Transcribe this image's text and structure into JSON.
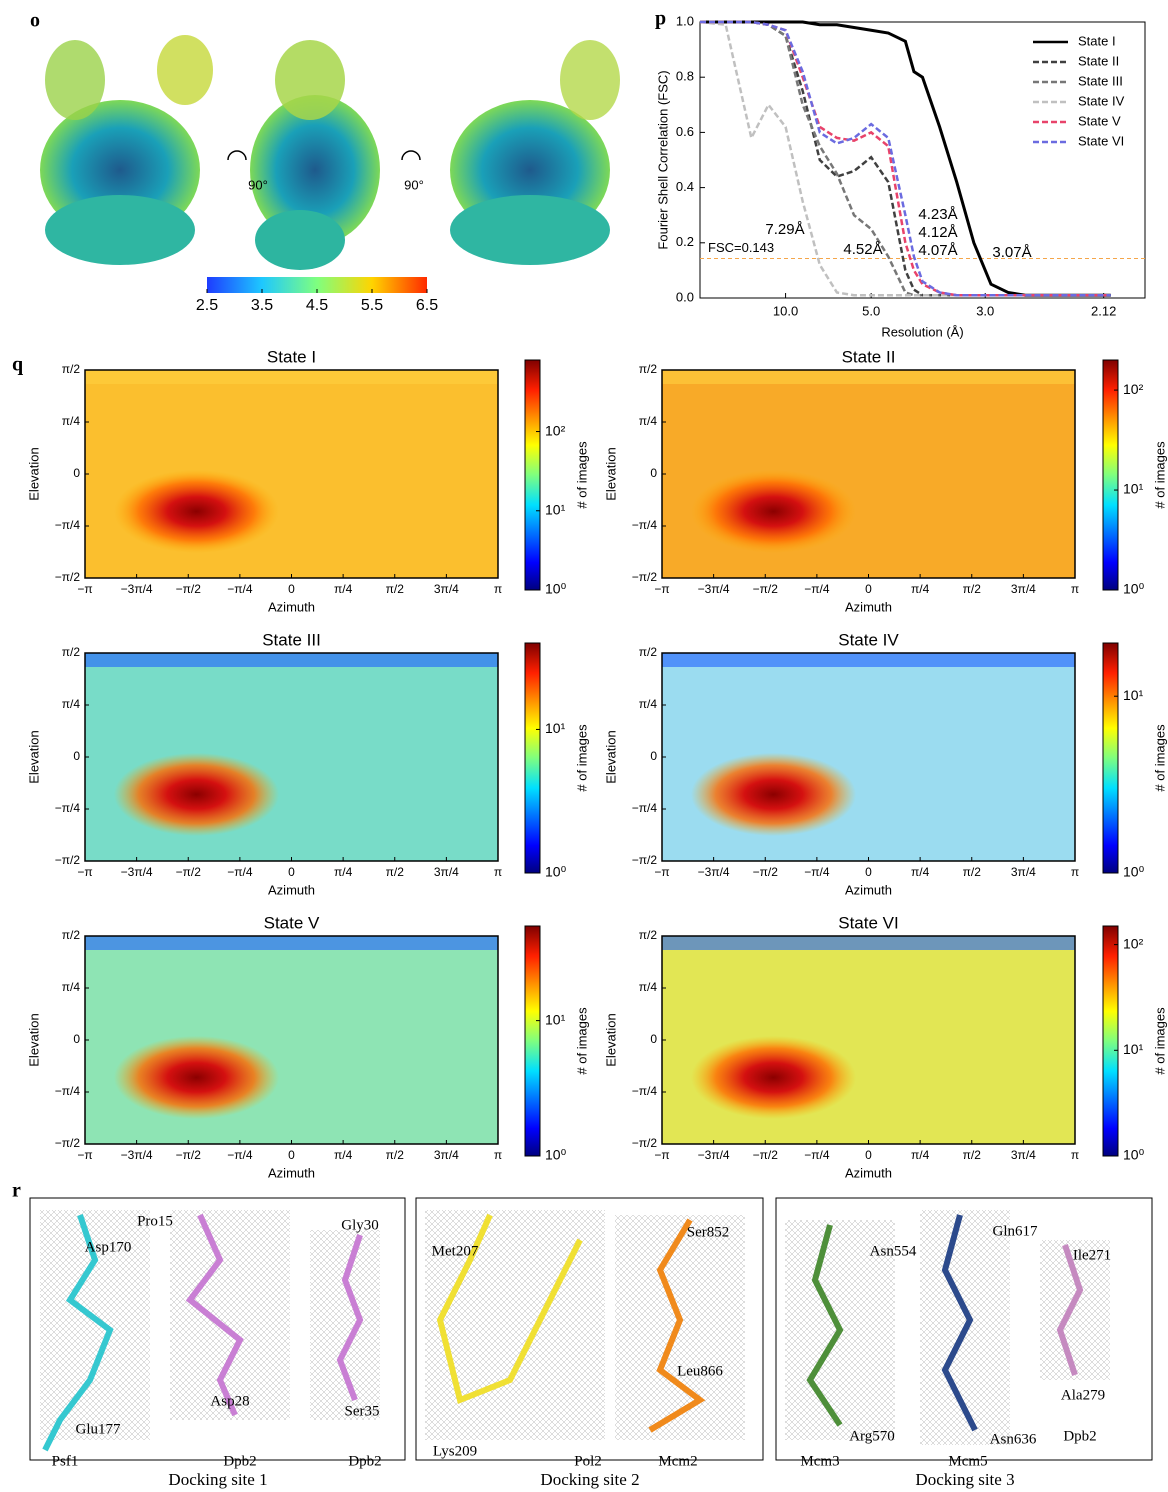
{
  "panel_labels": [
    "o",
    "p",
    "q",
    "r"
  ],
  "map": {
    "colorbar_ticks": [
      2.5,
      3.5,
      4.5,
      5.5,
      6.5
    ],
    "rotation_labels": [
      "90°",
      "90°"
    ]
  },
  "chart_data": [
    {
      "type": "line",
      "xlabel": "Resolution (Å)",
      "ylabel": "Fourier Shell Correlation (FSC)",
      "x": [
        0.0,
        0.03,
        0.06,
        0.08,
        0.1,
        0.12,
        0.14,
        0.16,
        0.18,
        0.2,
        0.22,
        0.24,
        0.25,
        0.26,
        0.28,
        0.3,
        0.32,
        0.34,
        0.36,
        0.38,
        0.42,
        0.46,
        0.48
      ],
      "series": [
        {
          "name": "State I",
          "color": "#000000",
          "dashed": false,
          "values": [
            1,
            1,
            1,
            1,
            1,
            1,
            0.99,
            0.99,
            0.98,
            0.97,
            0.96,
            0.93,
            0.82,
            0.8,
            0.62,
            0.42,
            0.2,
            0.05,
            0.02,
            0.01,
            0.01,
            0.01,
            0.01
          ]
        },
        {
          "name": "State II",
          "color": "#404040",
          "dashed": true,
          "values": [
            1,
            1,
            1,
            0.99,
            0.95,
            0.75,
            0.5,
            0.44,
            0.46,
            0.51,
            0.42,
            0.1,
            0.03,
            0.01,
            0.01,
            0.01,
            0.01,
            0.01,
            0.01,
            0.01,
            0.01,
            0.01,
            0.01
          ]
        },
        {
          "name": "State III",
          "color": "#777777",
          "dashed": true,
          "values": [
            1,
            1,
            1,
            0.99,
            0.95,
            0.7,
            0.55,
            0.45,
            0.3,
            0.25,
            0.15,
            0.02,
            0.01,
            0.01,
            0.01,
            0.01,
            0.01,
            0.01,
            0.01,
            0.01,
            0.01,
            0.01,
            0.01
          ]
        },
        {
          "name": "State IV",
          "color": "#c0c0c0",
          "dashed": true,
          "values": [
            1,
            0.99,
            0.58,
            0.7,
            0.62,
            0.35,
            0.12,
            0.02,
            0.01,
            0.01,
            0.01,
            0.01,
            0.01,
            0.01,
            0.01,
            0.01,
            0.01,
            0.01,
            0.01,
            0.01,
            0.01,
            0.01,
            0.01
          ]
        },
        {
          "name": "State V",
          "color": "#e8436a",
          "dashed": true,
          "values": [
            1,
            1,
            1,
            0.99,
            0.97,
            0.8,
            0.62,
            0.58,
            0.57,
            0.6,
            0.55,
            0.2,
            0.1,
            0.05,
            0.02,
            0.01,
            0.01,
            0.01,
            0.01,
            0.01,
            0.01,
            0.01,
            0.01
          ]
        },
        {
          "name": "State VI",
          "color": "#6b6be0",
          "dashed": true,
          "values": [
            1,
            1,
            1,
            0.99,
            0.97,
            0.82,
            0.6,
            0.56,
            0.58,
            0.63,
            0.58,
            0.3,
            0.15,
            0.06,
            0.02,
            0.01,
            0.01,
            0.01,
            0.01,
            0.01,
            0.01,
            0.01,
            0.01
          ]
        }
      ],
      "xlim": [
        0,
        0.52
      ],
      "xticks": [
        {
          "value": 0.1,
          "label": "10.0"
        },
        {
          "value": 0.2,
          "label": "5.0"
        },
        {
          "value": 0.3333,
          "label": "3.0"
        },
        {
          "value": 0.4717,
          "label": "2.12"
        }
      ],
      "ylim": [
        0,
        1
      ],
      "yticks": [
        {
          "value": 0,
          "label": "0.0"
        },
        {
          "value": 0.2,
          "label": "0.2"
        },
        {
          "value": 0.4,
          "label": "0.4"
        },
        {
          "value": 0.6,
          "label": "0.6"
        },
        {
          "value": 0.8,
          "label": "0.8"
        },
        {
          "value": 1,
          "label": "1.0"
        }
      ],
      "threshold": {
        "value": 0.143,
        "label": "FSC=0.143",
        "color": "#f5a64a"
      },
      "annotations": [
        {
          "text": "7.29Å",
          "color": "#c0c0c0"
        },
        {
          "text": "4.52Å",
          "color": "#777777"
        },
        {
          "text": "4.23Å",
          "color": "#404040"
        },
        {
          "text": "4.12Å",
          "color": "#e8436a"
        },
        {
          "text": "4.07Å",
          "color": "#6b6be0"
        },
        {
          "text": "3.07Å",
          "color": "#000000"
        }
      ],
      "legend": "upper right"
    },
    {
      "type": "heatmap",
      "title": "State I",
      "xlabel": "Azimuth",
      "ylabel": "Elevation",
      "xlim": [
        -3.14159,
        3.14159
      ],
      "ylim": [
        -1.5708,
        1.5708
      ],
      "xticks": [
        {
          "value": -3.14159,
          "label": "−π"
        },
        {
          "value": -2.35619,
          "label": "−3π/4"
        },
        {
          "value": -1.5708,
          "label": "−π/2"
        },
        {
          "value": -0.7854,
          "label": "−π/4"
        },
        0,
        {
          "value": 0.7854,
          "label": "π/4"
        },
        {
          "value": 1.5708,
          "label": "π/2"
        },
        {
          "value": 2.35619,
          "label": "3π/4"
        },
        {
          "value": 3.14159,
          "label": "π"
        }
      ],
      "yticks": [
        {
          "value": -1.5708,
          "label": "−π/2"
        },
        {
          "value": -0.7854,
          "label": "−π/4"
        },
        0,
        {
          "value": 0.7854,
          "label": "π/4"
        },
        {
          "value": 1.5708,
          "label": "π/2"
        }
      ],
      "colorbar": {
        "label": "# of images",
        "log": true,
        "lim": [
          1,
          800
        ],
        "ticks": [
          {
            "value": 1,
            "label": "10⁰"
          },
          {
            "value": 10,
            "label": "10¹"
          },
          {
            "value": 100,
            "label": "10²"
          }
        ]
      }
    },
    {
      "type": "heatmap",
      "title": "State II",
      "xlabel": "Azimuth",
      "ylabel": "Elevation",
      "xlim": [
        -3.14159,
        3.14159
      ],
      "ylim": [
        -1.5708,
        1.5708
      ],
      "xticks": [
        {
          "value": -3.14159,
          "label": "−π"
        },
        {
          "value": -2.35619,
          "label": "−3π/4"
        },
        {
          "value": -1.5708,
          "label": "−π/2"
        },
        {
          "value": -0.7854,
          "label": "−π/4"
        },
        0,
        {
          "value": 0.7854,
          "label": "π/4"
        },
        {
          "value": 1.5708,
          "label": "π/2"
        },
        {
          "value": 2.35619,
          "label": "3π/4"
        },
        {
          "value": 3.14159,
          "label": "π"
        }
      ],
      "yticks": [
        {
          "value": -1.5708,
          "label": "−π/2"
        },
        {
          "value": -0.7854,
          "label": "−π/4"
        },
        0,
        {
          "value": 0.7854,
          "label": "π/4"
        },
        {
          "value": 1.5708,
          "label": "π/2"
        }
      ],
      "colorbar": {
        "label": "# of images",
        "log": true,
        "lim": [
          1,
          200
        ],
        "ticks": [
          {
            "value": 1,
            "label": "10⁰"
          },
          {
            "value": 10,
            "label": "10¹"
          },
          {
            "value": 100,
            "label": "10²"
          }
        ]
      }
    },
    {
      "type": "heatmap",
      "title": "State III",
      "xlabel": "Azimuth",
      "ylabel": "Elevation",
      "xlim": [
        -3.14159,
        3.14159
      ],
      "ylim": [
        -1.5708,
        1.5708
      ],
      "xticks": [
        {
          "value": -3.14159,
          "label": "−π"
        },
        {
          "value": -2.35619,
          "label": "−3π/4"
        },
        {
          "value": -1.5708,
          "label": "−π/2"
        },
        {
          "value": -0.7854,
          "label": "−π/4"
        },
        0,
        {
          "value": 0.7854,
          "label": "π/4"
        },
        {
          "value": 1.5708,
          "label": "π/2"
        },
        {
          "value": 2.35619,
          "label": "3π/4"
        },
        {
          "value": 3.14159,
          "label": "π"
        }
      ],
      "yticks": [
        {
          "value": -1.5708,
          "label": "−π/2"
        },
        {
          "value": -0.7854,
          "label": "−π/4"
        },
        0,
        {
          "value": 0.7854,
          "label": "π/4"
        },
        {
          "value": 1.5708,
          "label": "π/2"
        }
      ],
      "colorbar": {
        "label": "# of images",
        "log": true,
        "lim": [
          1,
          40
        ],
        "ticks": [
          {
            "value": 1,
            "label": "10⁰"
          },
          {
            "value": 10,
            "label": "10¹"
          }
        ]
      }
    },
    {
      "type": "heatmap",
      "title": "State IV",
      "xlabel": "Azimuth",
      "ylabel": "Elevation",
      "xlim": [
        -3.14159,
        3.14159
      ],
      "ylim": [
        -1.5708,
        1.5708
      ],
      "xticks": [
        {
          "value": -3.14159,
          "label": "−π"
        },
        {
          "value": -2.35619,
          "label": "−3π/4"
        },
        {
          "value": -1.5708,
          "label": "−π/2"
        },
        {
          "value": -0.7854,
          "label": "−π/4"
        },
        0,
        {
          "value": 0.7854,
          "label": "π/4"
        },
        {
          "value": 1.5708,
          "label": "π/2"
        },
        {
          "value": 2.35619,
          "label": "3π/4"
        },
        {
          "value": 3.14159,
          "label": "π"
        }
      ],
      "yticks": [
        {
          "value": -1.5708,
          "label": "−π/2"
        },
        {
          "value": -0.7854,
          "label": "−π/4"
        },
        0,
        {
          "value": 0.7854,
          "label": "π/4"
        },
        {
          "value": 1.5708,
          "label": "π/2"
        }
      ],
      "colorbar": {
        "label": "# of images",
        "log": true,
        "lim": [
          1,
          20
        ],
        "ticks": [
          {
            "value": 1,
            "label": "10⁰"
          },
          {
            "value": 10,
            "label": "10¹"
          }
        ]
      }
    },
    {
      "type": "heatmap",
      "title": "State V",
      "xlabel": "Azimuth",
      "ylabel": "Elevation",
      "xlim": [
        -3.14159,
        3.14159
      ],
      "ylim": [
        -1.5708,
        1.5708
      ],
      "xticks": [
        {
          "value": -3.14159,
          "label": "−π"
        },
        {
          "value": -2.35619,
          "label": "−3π/4"
        },
        {
          "value": -1.5708,
          "label": "−π/2"
        },
        {
          "value": -0.7854,
          "label": "−π/4"
        },
        0,
        {
          "value": 0.7854,
          "label": "π/4"
        },
        {
          "value": 1.5708,
          "label": "π/2"
        },
        {
          "value": 2.35619,
          "label": "3π/4"
        },
        {
          "value": 3.14159,
          "label": "π"
        }
      ],
      "yticks": [
        {
          "value": -1.5708,
          "label": "−π/2"
        },
        {
          "value": -0.7854,
          "label": "−π/4"
        },
        0,
        {
          "value": 0.7854,
          "label": "π/4"
        },
        {
          "value": 1.5708,
          "label": "π/2"
        }
      ],
      "colorbar": {
        "label": "# of images",
        "log": true,
        "lim": [
          1,
          50
        ],
        "ticks": [
          {
            "value": 1,
            "label": "10⁰"
          },
          {
            "value": 10,
            "label": "10¹"
          }
        ]
      }
    },
    {
      "type": "heatmap",
      "title": "State VI",
      "xlabel": "Azimuth",
      "ylabel": "Elevation",
      "xlim": [
        -3.14159,
        3.14159
      ],
      "ylim": [
        -1.5708,
        1.5708
      ],
      "xticks": [
        {
          "value": -3.14159,
          "label": "−π"
        },
        {
          "value": -2.35619,
          "label": "−3π/4"
        },
        {
          "value": -1.5708,
          "label": "−π/2"
        },
        {
          "value": -0.7854,
          "label": "−π/4"
        },
        0,
        {
          "value": 0.7854,
          "label": "π/4"
        },
        {
          "value": 1.5708,
          "label": "π/2"
        },
        {
          "value": 2.35619,
          "label": "3π/4"
        },
        {
          "value": 3.14159,
          "label": "π"
        }
      ],
      "yticks": [
        {
          "value": -1.5708,
          "label": "−π/2"
        },
        {
          "value": -0.7854,
          "label": "−π/4"
        },
        0,
        {
          "value": 0.7854,
          "label": "π/4"
        },
        {
          "value": 1.5708,
          "label": "π/2"
        }
      ],
      "colorbar": {
        "label": "# of images",
        "log": true,
        "lim": [
          1,
          150
        ],
        "ticks": [
          {
            "value": 1,
            "label": "10⁰"
          },
          {
            "value": 10,
            "label": "10¹"
          },
          {
            "value": 100,
            "label": "10²"
          }
        ]
      }
    }
  ],
  "docking": [
    {
      "caption": "Docking site 1",
      "labels": [
        "Asp170",
        "Pro15",
        "Gly30",
        "Glu177",
        "Asp28",
        "Ser35",
        "Psf1",
        "Dpb2",
        "Dpb2"
      ]
    },
    {
      "caption": "Docking site 2",
      "labels": [
        "Met207",
        "Ser852",
        "Leu866",
        "Lys209",
        "Pol2",
        "Mcm2"
      ]
    },
    {
      "caption": "Docking site 3",
      "labels": [
        "Asn554",
        "Gln617",
        "Ile271",
        "Ala279",
        "Arg570",
        "Asn636",
        "Dpb2",
        "Mcm3",
        "Mcm5"
      ]
    }
  ]
}
